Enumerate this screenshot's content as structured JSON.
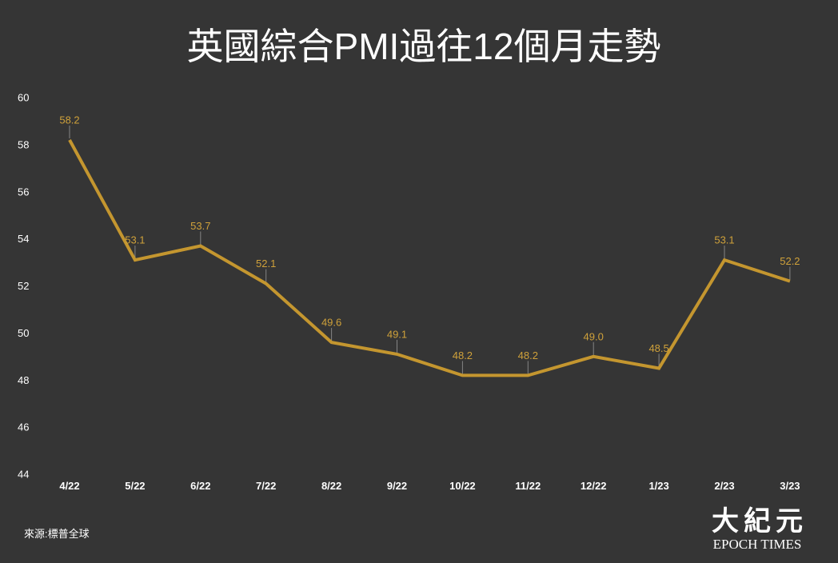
{
  "chart_data": {
    "type": "line",
    "title": "英國綜合PMI過往12個月走勢",
    "xlabel": "",
    "ylabel": "",
    "categories": [
      "4/22",
      "5/22",
      "6/22",
      "7/22",
      "8/22",
      "9/22",
      "10/22",
      "11/22",
      "12/22",
      "1/23",
      "2/23",
      "3/23"
    ],
    "values": [
      58.2,
      53.1,
      53.7,
      52.1,
      49.6,
      49.1,
      48.2,
      48.2,
      49.0,
      48.5,
      53.1,
      52.2
    ],
    "ylim": [
      44,
      60
    ],
    "ytick_step": 2,
    "data_labels_shown": true,
    "grid": false,
    "show_legend": false
  },
  "source": "來源:標普全球",
  "logo": {
    "chinese": "大紀元",
    "english": "EPOCH TIMES"
  },
  "colors": {
    "background": "#353535",
    "line": "#C4962F",
    "data_label": "#CFA13A",
    "leader": "#858585",
    "text": "#FFFFFF"
  }
}
